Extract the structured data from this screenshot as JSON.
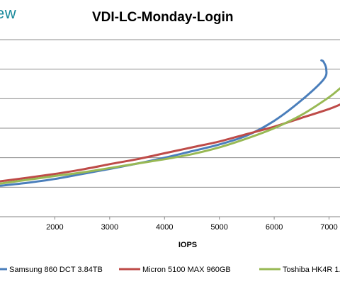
{
  "brand_text": "ew",
  "chart_data": {
    "type": "line",
    "title": "VDI-LC-Monday-Login",
    "xlabel": "IOPS",
    "ylabel": "",
    "xticks": [
      2000,
      3000,
      4000,
      5000,
      6000,
      7000
    ],
    "xlim": [
      1000,
      7200
    ],
    "ylim": [
      0,
      6
    ],
    "grid": true,
    "legend_position": "bottom",
    "series": [
      {
        "name": "Samsung 860 DCT 3.84TB",
        "color": "#4a7ebb",
        "points": [
          [
            1000,
            1.05
          ],
          [
            1500,
            1.15
          ],
          [
            2000,
            1.28
          ],
          [
            2500,
            1.45
          ],
          [
            3000,
            1.62
          ],
          [
            3500,
            1.8
          ],
          [
            4000,
            2.0
          ],
          [
            4500,
            2.22
          ],
          [
            5000,
            2.45
          ],
          [
            5500,
            2.75
          ],
          [
            6000,
            3.25
          ],
          [
            6500,
            3.95
          ],
          [
            6900,
            4.65
          ],
          [
            6950,
            5.0
          ],
          [
            6900,
            5.25
          ],
          [
            6860,
            5.3
          ]
        ]
      },
      {
        "name": "Micron 5100 MAX 960GB",
        "color": "#be4b48",
        "points": [
          [
            1000,
            1.2
          ],
          [
            1500,
            1.32
          ],
          [
            2000,
            1.45
          ],
          [
            2500,
            1.6
          ],
          [
            3000,
            1.78
          ],
          [
            3500,
            1.95
          ],
          [
            4000,
            2.15
          ],
          [
            4500,
            2.35
          ],
          [
            5000,
            2.55
          ],
          [
            5500,
            2.8
          ],
          [
            6000,
            3.05
          ],
          [
            6500,
            3.35
          ],
          [
            7000,
            3.65
          ],
          [
            7200,
            3.8
          ]
        ]
      },
      {
        "name": "Toshiba HK4R 1.",
        "color": "#98b954",
        "points": [
          [
            1000,
            1.12
          ],
          [
            1500,
            1.25
          ],
          [
            2000,
            1.38
          ],
          [
            2500,
            1.5
          ],
          [
            3000,
            1.65
          ],
          [
            3500,
            1.8
          ],
          [
            4000,
            1.95
          ],
          [
            4500,
            2.12
          ],
          [
            5000,
            2.35
          ],
          [
            5500,
            2.65
          ],
          [
            6000,
            3.0
          ],
          [
            6500,
            3.45
          ],
          [
            7000,
            4.05
          ],
          [
            7200,
            4.35
          ]
        ]
      }
    ]
  }
}
